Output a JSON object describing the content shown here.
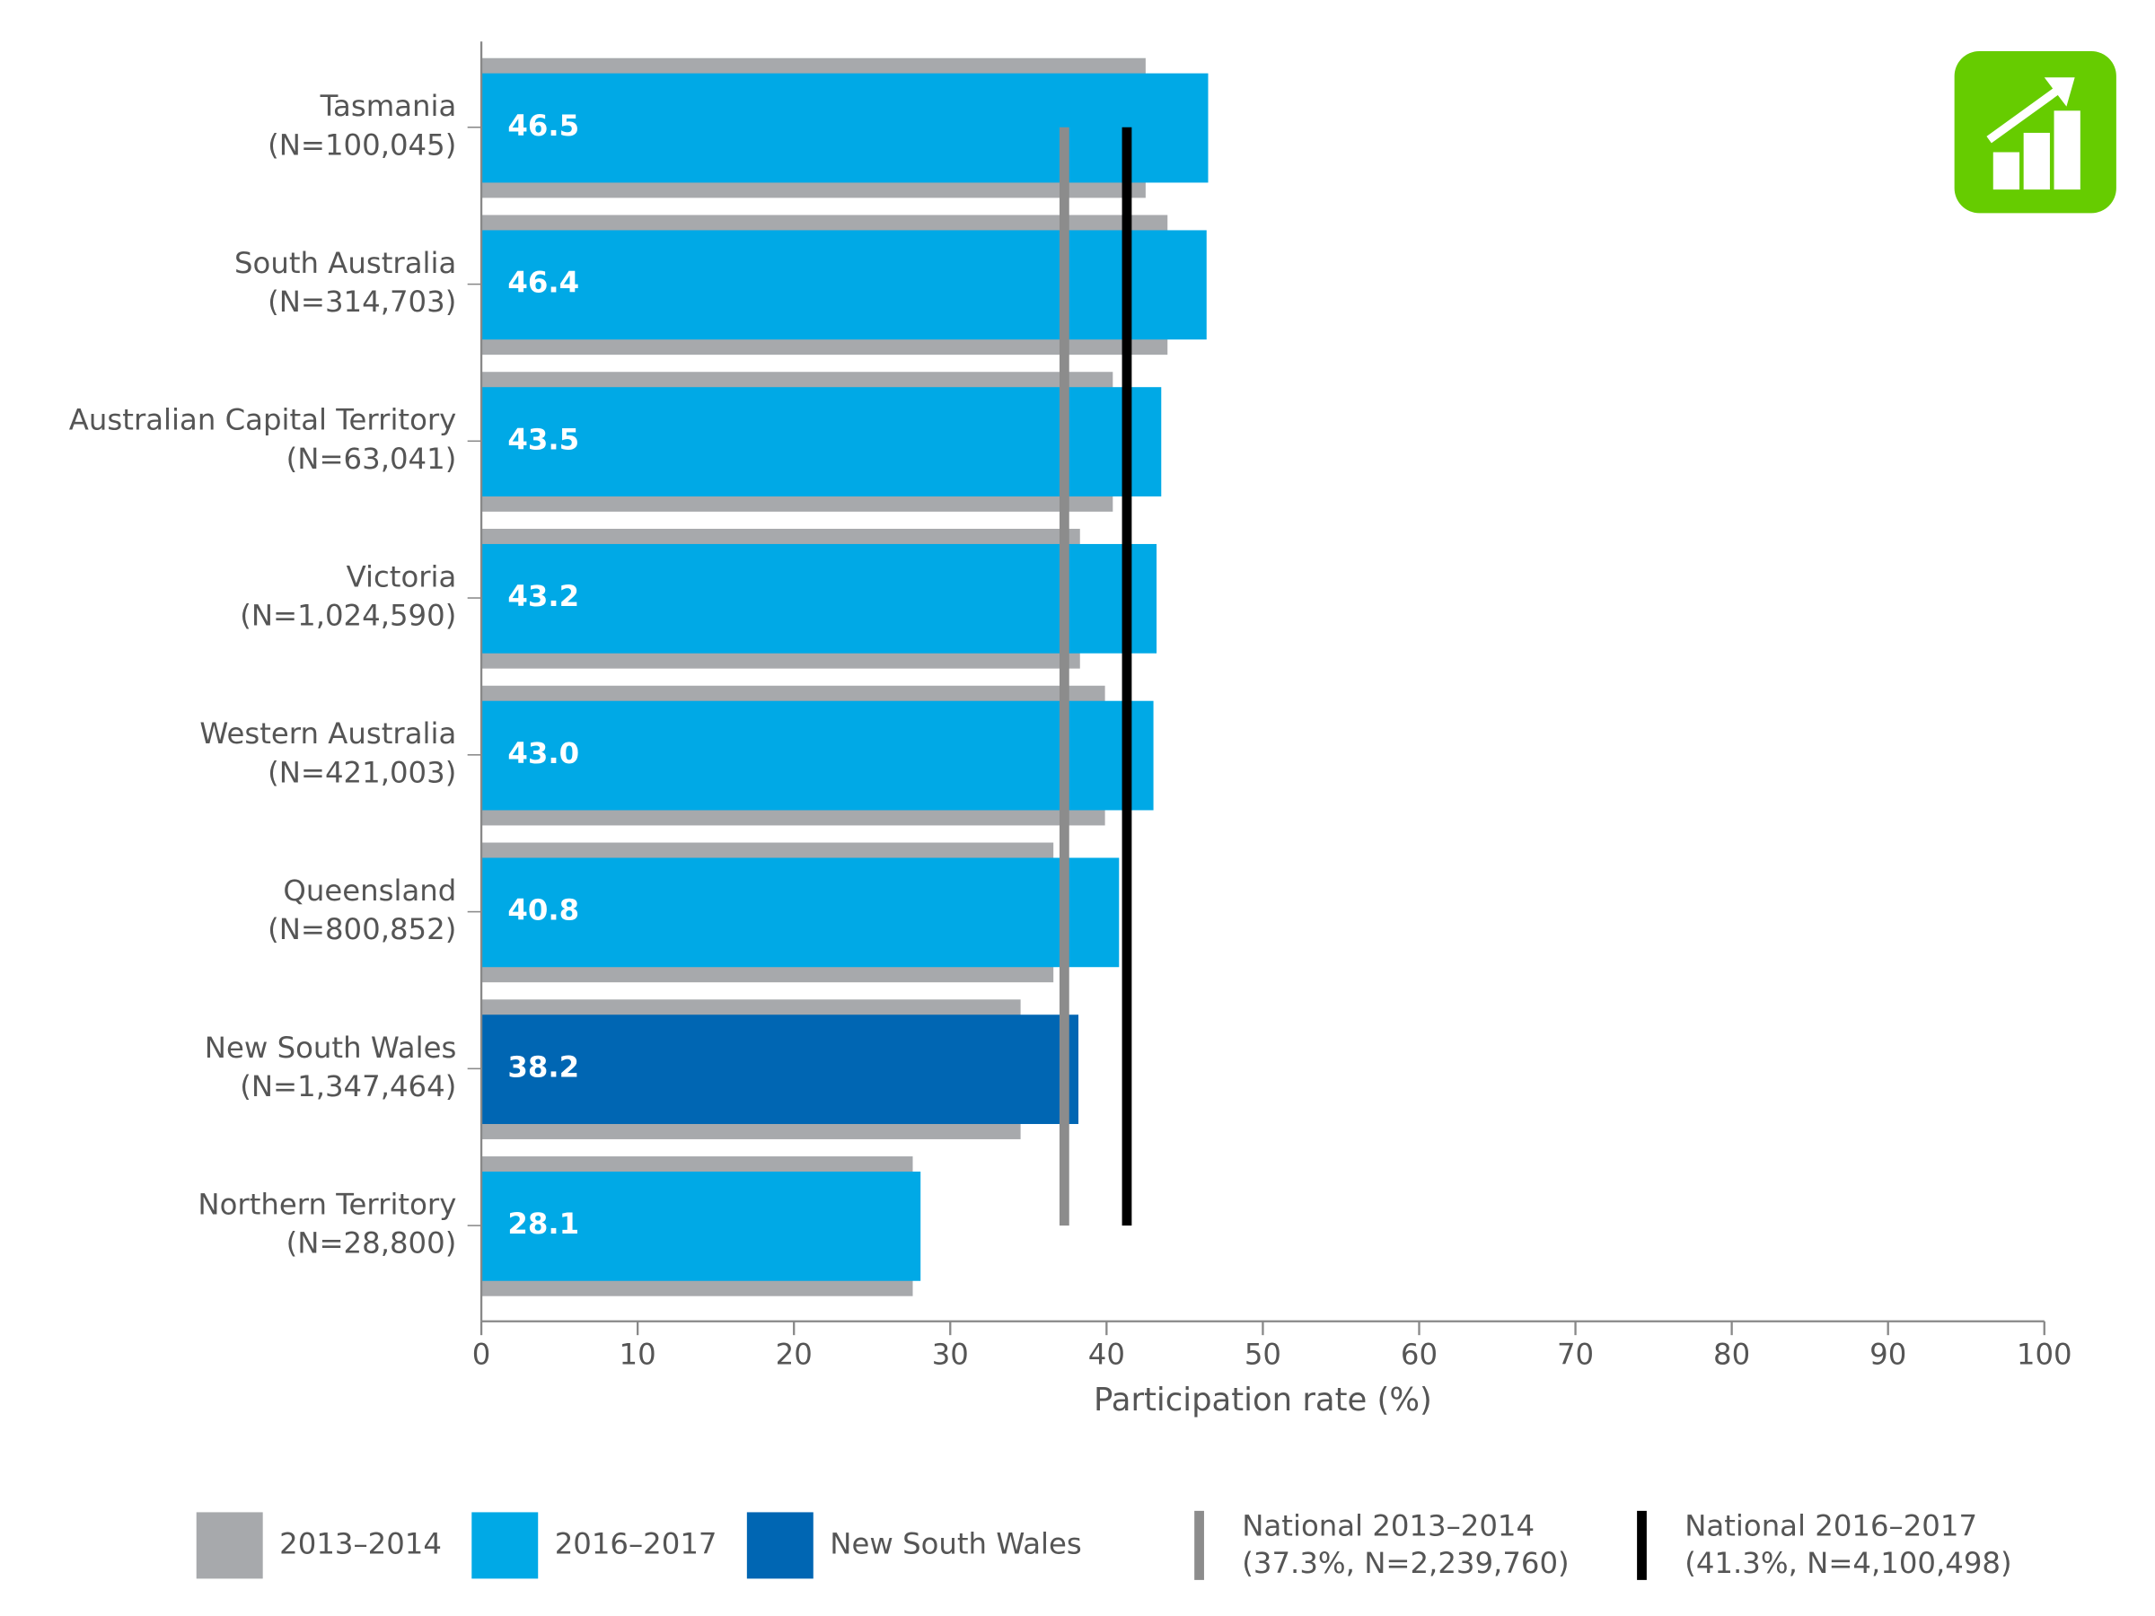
{
  "chart_data": {
    "type": "barh",
    "categories": [
      "Tasmania",
      "South Australia",
      "Australian Capital Territory",
      "Victoria",
      "Western Australia",
      "Queensland",
      "New South Wales",
      "Northern Territory"
    ],
    "category_counts": [
      "(N=100,045)",
      "(N=314,703)",
      "(N=63,041)",
      "(N=1,024,590)",
      "(N=421,003)",
      "(N=800,852)",
      "(N=1,347,464)",
      "(N=28,800)"
    ],
    "series": [
      {
        "name": "2013–2014",
        "color": "#a7a9ac",
        "values": [
          42.5,
          43.9,
          40.4,
          38.3,
          39.9,
          36.6,
          34.5,
          27.6
        ]
      },
      {
        "name": "2016–2017",
        "color": "#00a9e6",
        "values": [
          46.5,
          46.4,
          43.5,
          43.2,
          43.0,
          40.8,
          38.2,
          28.1
        ],
        "value_labels": [
          "46.5",
          "46.4",
          "43.5",
          "43.2",
          "43.0",
          "40.8",
          "38.2",
          "28.1"
        ]
      }
    ],
    "highlight": {
      "name": "New South Wales",
      "color": "#0066b3"
    },
    "reference_lines": [
      {
        "name": "National 2013–2014",
        "label": "(37.3%, N=2,239,760)",
        "value": 37.3,
        "color": "#8c8c8c"
      },
      {
        "name": "National 2016–2017",
        "label": "(41.3%, N=4,100,498)",
        "value": 41.3,
        "color": "#000000"
      }
    ],
    "xlabel": "Participation rate (%)",
    "xlim": [
      0,
      100
    ],
    "xticks": [
      0,
      10,
      20,
      30,
      40,
      50,
      60,
      70,
      80,
      90,
      100
    ]
  }
}
